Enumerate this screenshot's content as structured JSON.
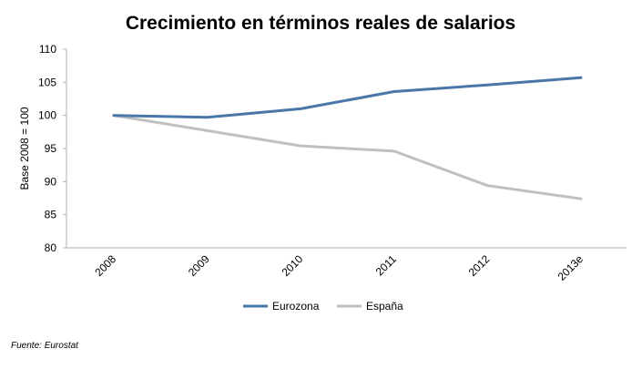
{
  "chart_data": {
    "type": "line",
    "title": "Crecimiento en términos reales de salarios",
    "ylabel": "Base 2008 = 100",
    "xlabel": "",
    "categories": [
      "2008",
      "2009",
      "2010",
      "2011",
      "2012",
      "2013e"
    ],
    "ylim": [
      80,
      110
    ],
    "yticks": [
      "110",
      "105",
      "100",
      "95",
      "90",
      "85",
      "80"
    ],
    "grid": false,
    "legend_position": "bottom",
    "series": [
      {
        "name": "Eurozona",
        "color": "#4a76a8",
        "values": [
          100,
          99.7,
          101.0,
          103.6,
          104.6,
          105.7
        ]
      },
      {
        "name": "España",
        "color": "#c0c0c0",
        "values": [
          100,
          97.7,
          95.4,
          94.6,
          89.4,
          87.4
        ]
      }
    ],
    "source": "Fuente: Eurostat"
  }
}
